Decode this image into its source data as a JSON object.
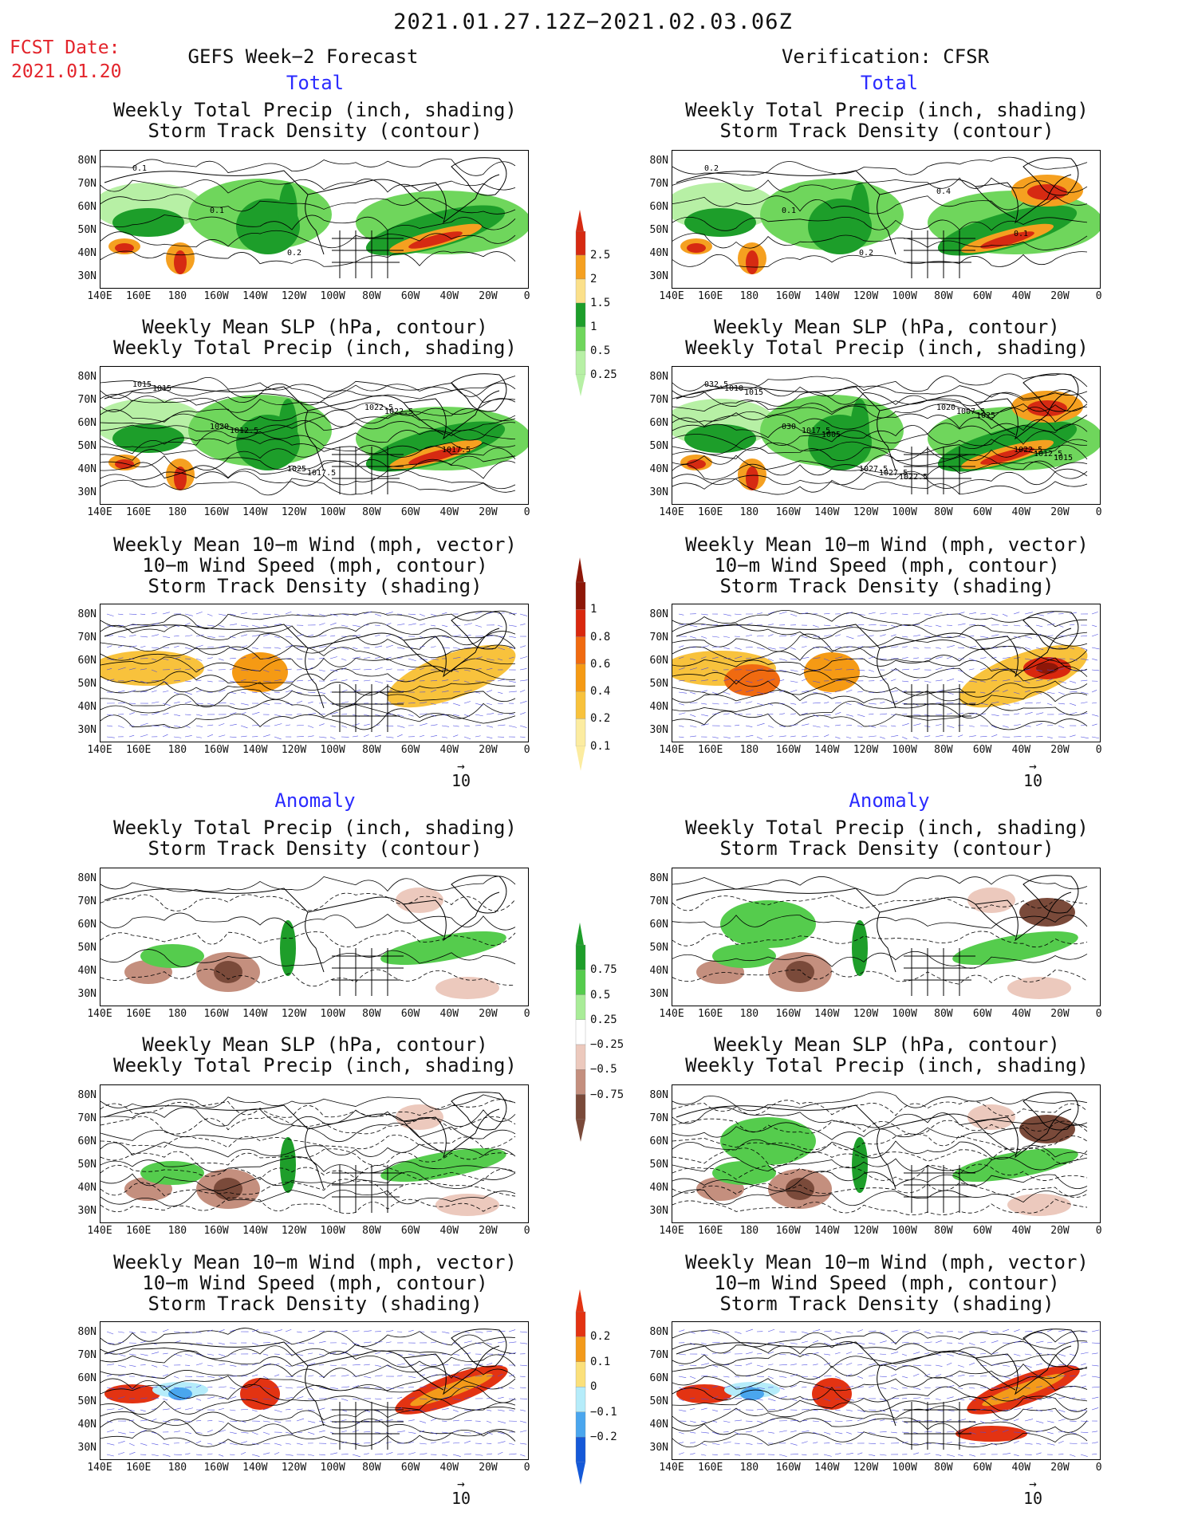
{
  "header": {
    "date_range": "2021.01.27.12Z−2021.02.03.06Z",
    "fcst_label": "FCST Date:",
    "fcst_date": "2021.01.20",
    "left_title": "GEFS Week−2 Forecast",
    "right_title": "Verification: CFSR"
  },
  "sections": {
    "total": "Total",
    "anomaly": "Anomaly"
  },
  "panel_titles": {
    "precip_storm": [
      "Weekly Total Precip (inch, shading)",
      "Storm Track Density (contour)"
    ],
    "slp_precip": [
      "Weekly Mean SLP (hPa, contour)",
      "Weekly Total Precip (inch, shading)"
    ],
    "wind": [
      "Weekly Mean 10−m Wind (mph, vector)",
      "10−m Wind Speed (mph, contour)",
      "Storm Track Density (shading)"
    ]
  },
  "axes": {
    "lat_labels": [
      "80N",
      "70N",
      "60N",
      "50N",
      "40N",
      "30N"
    ],
    "lon_labels": [
      "140E",
      "160E",
      "180",
      "160W",
      "140W",
      "120W",
      "100W",
      "80W",
      "60W",
      "40W",
      "20W",
      "0"
    ]
  },
  "vector_ref": "10",
  "colorbars": {
    "precip_total": {
      "labels": [
        "2.5",
        "2",
        "1.5",
        "1",
        "0.5",
        "0.25"
      ],
      "colors": [
        "#d62a12",
        "#f5a020",
        "#fbe08a",
        "#1d9e2a",
        "#6fd65c",
        "#b7f0a5"
      ]
    },
    "storm_total": {
      "labels": [
        "1",
        "0.8",
        "0.6",
        "0.4",
        "0.2",
        "0.1"
      ],
      "colors": [
        "#8e1708",
        "#d9280e",
        "#f06a10",
        "#f59a14",
        "#f8c23c",
        "#fcecA0"
      ]
    },
    "precip_anom": {
      "labels": [
        "0.75",
        "0.5",
        "0.25",
        "−0.25",
        "−0.5",
        "−0.75"
      ],
      "colors": [
        "#1e9e2a",
        "#55cc4d",
        "#a9ec98",
        "#ffffff",
        "#ecc9bd",
        "#c48f7e",
        "#7a4a3a"
      ]
    },
    "storm_anom": {
      "labels": [
        "0.2",
        "0.1",
        "0",
        "−0.1",
        "−0.2"
      ],
      "colors": [
        "#e33312",
        "#f39a1a",
        "#fbe07a",
        "#b5ecfa",
        "#4aa6ee",
        "#1559d8"
      ]
    }
  },
  "panel_labels": {
    "fc_precip_total": [
      "0.1",
      "0.1",
      "0.2"
    ],
    "ob_precip_total": [
      "0.2",
      "0.1",
      "0.2",
      "0.4",
      "0.1"
    ],
    "fc_slp_total": [
      "1015",
      "1020",
      "1025",
      "1022.5",
      "1017.5",
      "1015",
      "1012.5",
      "1017.5",
      "1022.5"
    ],
    "ob_slp_total": [
      "032.5",
      "030",
      "1027.5",
      "1020",
      "1022.5",
      "1010",
      "1017.5",
      "1027.5",
      "1007.5",
      "1012.5",
      "1015",
      "1005",
      "1022.5",
      "1025",
      "1015"
    ]
  }
}
